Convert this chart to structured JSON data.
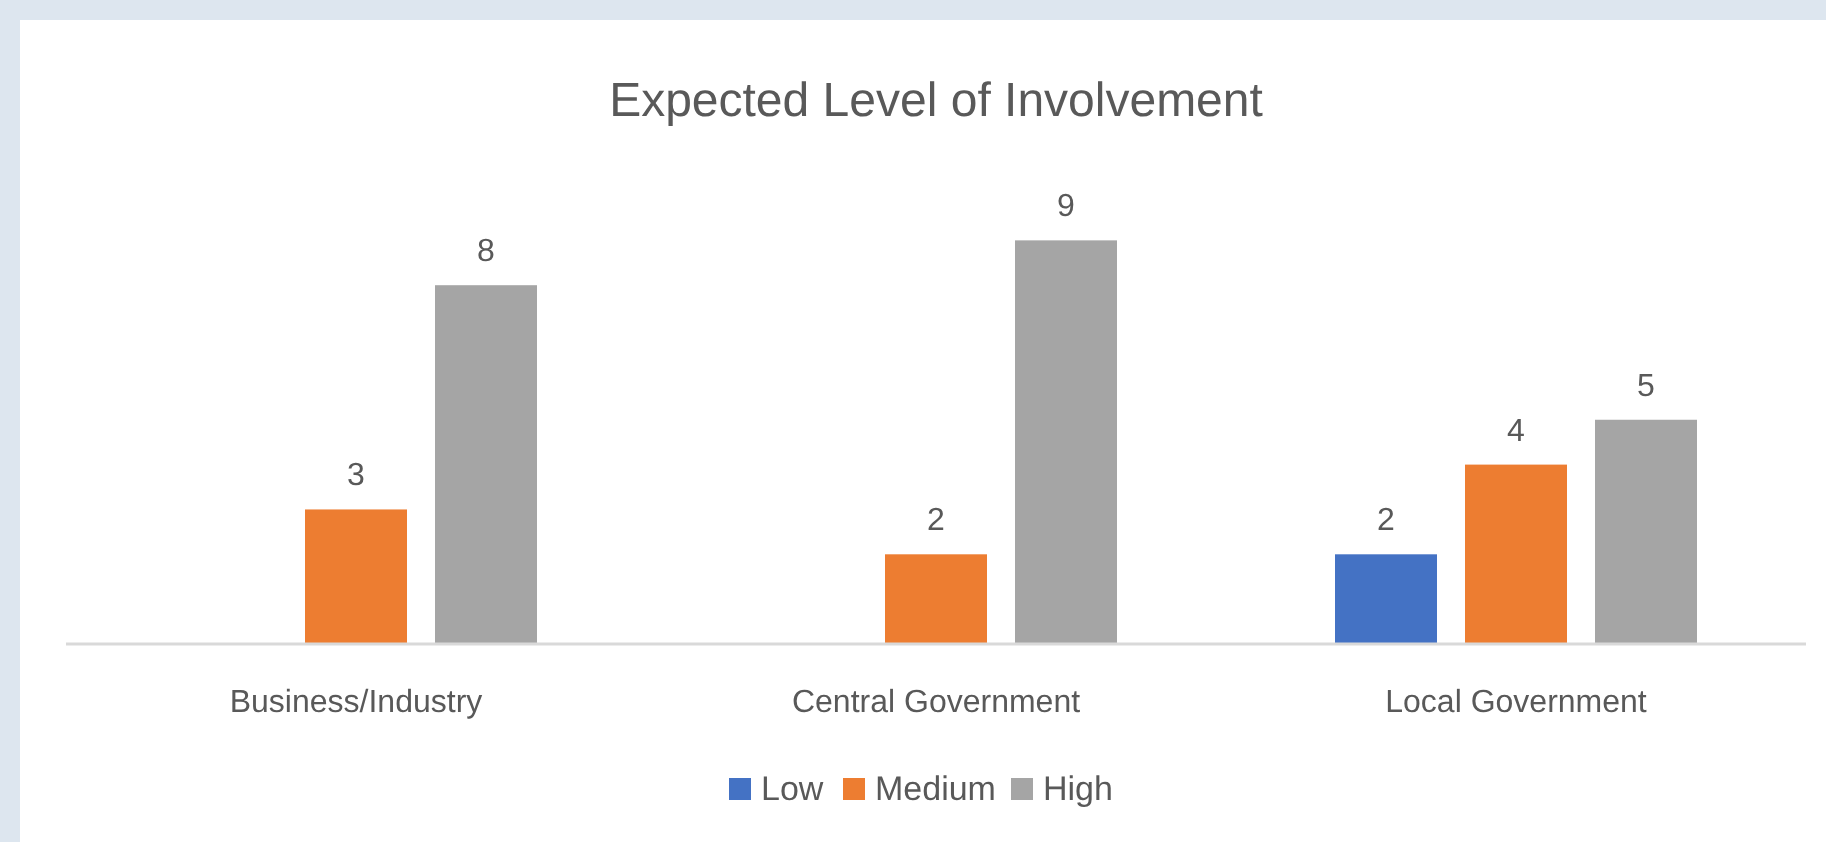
{
  "chart_data": {
    "type": "bar",
    "title": "Expected Level of Involvement",
    "categories": [
      "Business/Industry",
      "Central Government",
      "Local Government"
    ],
    "series": [
      {
        "name": "Low",
        "color": "#4472c4",
        "values": [
          null,
          null,
          2
        ]
      },
      {
        "name": "Medium",
        "color": "#ed7d31",
        "values": [
          3,
          2,
          4
        ]
      },
      {
        "name": "High",
        "color": "#a5a5a5",
        "values": [
          8,
          9,
          5
        ]
      }
    ],
    "data_labels": true,
    "legend": "bottom",
    "grid": false
  }
}
